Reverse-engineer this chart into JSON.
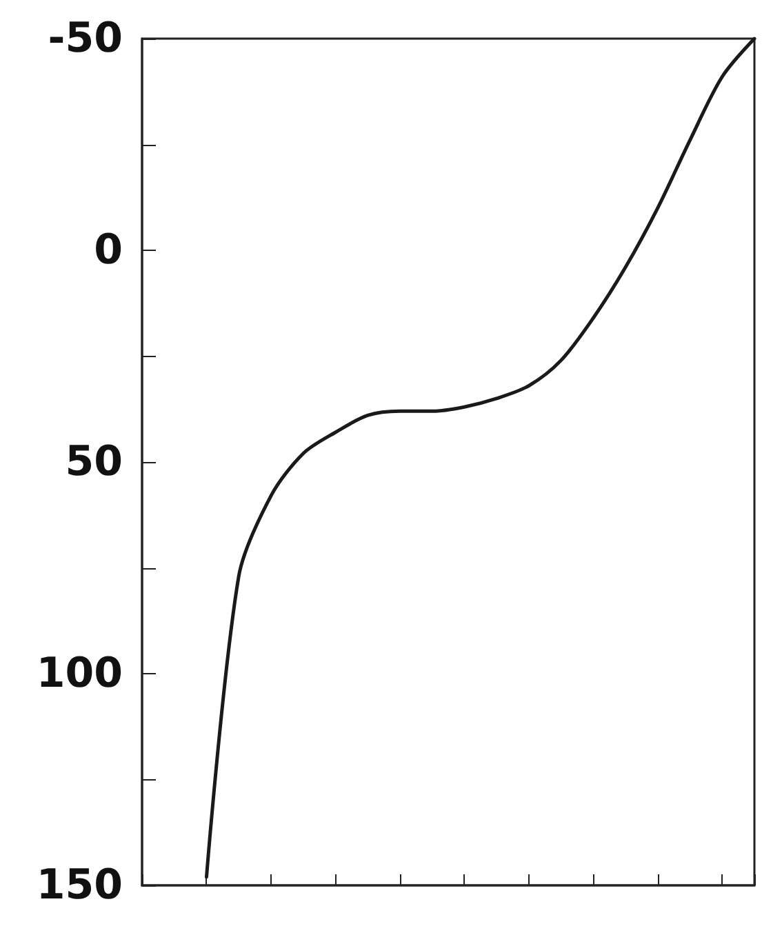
{
  "chart_data": {
    "type": "line",
    "categories": [
      null,
      null,
      null,
      null,
      null,
      null,
      null,
      null,
      null,
      null,
      null,
      null,
      null,
      null,
      null,
      null,
      null,
      null,
      null,
      null
    ],
    "series": [
      {
        "color": "#1a1a1a",
        "values": [
          null,
          null,
          148,
          77,
          58,
          48,
          43,
          39,
          38,
          38,
          37,
          35,
          32,
          26,
          16,
          4,
          -10,
          -26,
          -41,
          -50
        ]
      }
    ],
    "ylim": [
      150,
      -50
    ],
    "yticks": [
      -50,
      {
        "value": -25,
        "label": null
      },
      0,
      {
        "value": 25,
        "label": null
      },
      50,
      {
        "value": 75,
        "label": null
      },
      100,
      {
        "value": 125,
        "label": null
      },
      150
    ],
    "tick_labels": "y",
    "grid": false,
    "marker": "none",
    "line_style": "solid"
  }
}
